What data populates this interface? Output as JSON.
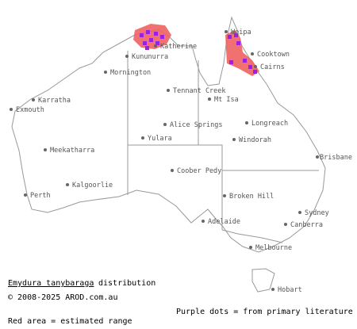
{
  "caption": {
    "species": "Emydura tanybaraga",
    "distribution": "distribution",
    "copyright": "© 2008-2025 AROD.com.au",
    "legend_dots": "Purple dots = from primary literature",
    "legend_area": "Red area = estimated range"
  },
  "towns": [
    {
      "label": "Weipa"
    },
    {
      "label": "Katherine"
    },
    {
      "label": "Kununurra"
    },
    {
      "label": "Cooktown"
    },
    {
      "label": "Cairns"
    },
    {
      "label": "Mornington"
    },
    {
      "label": "Tennant Creek"
    },
    {
      "label": "Mt Isa"
    },
    {
      "label": "Karratha"
    },
    {
      "label": "Exmouth"
    },
    {
      "label": "Longreach"
    },
    {
      "label": "Alice Springs"
    },
    {
      "label": "Yulara"
    },
    {
      "label": "Windorah"
    },
    {
      "label": "Meekatharra"
    },
    {
      "label": "Coober Pedy"
    },
    {
      "label": "Brisbane"
    },
    {
      "label": "Perth"
    },
    {
      "label": "Kalgoorlie"
    },
    {
      "label": "Broken Hill"
    },
    {
      "label": "Sydney"
    },
    {
      "label": "Adelaide"
    },
    {
      "label": "Canberra"
    },
    {
      "label": "Melbourne"
    },
    {
      "label": "Hobart"
    }
  ]
}
